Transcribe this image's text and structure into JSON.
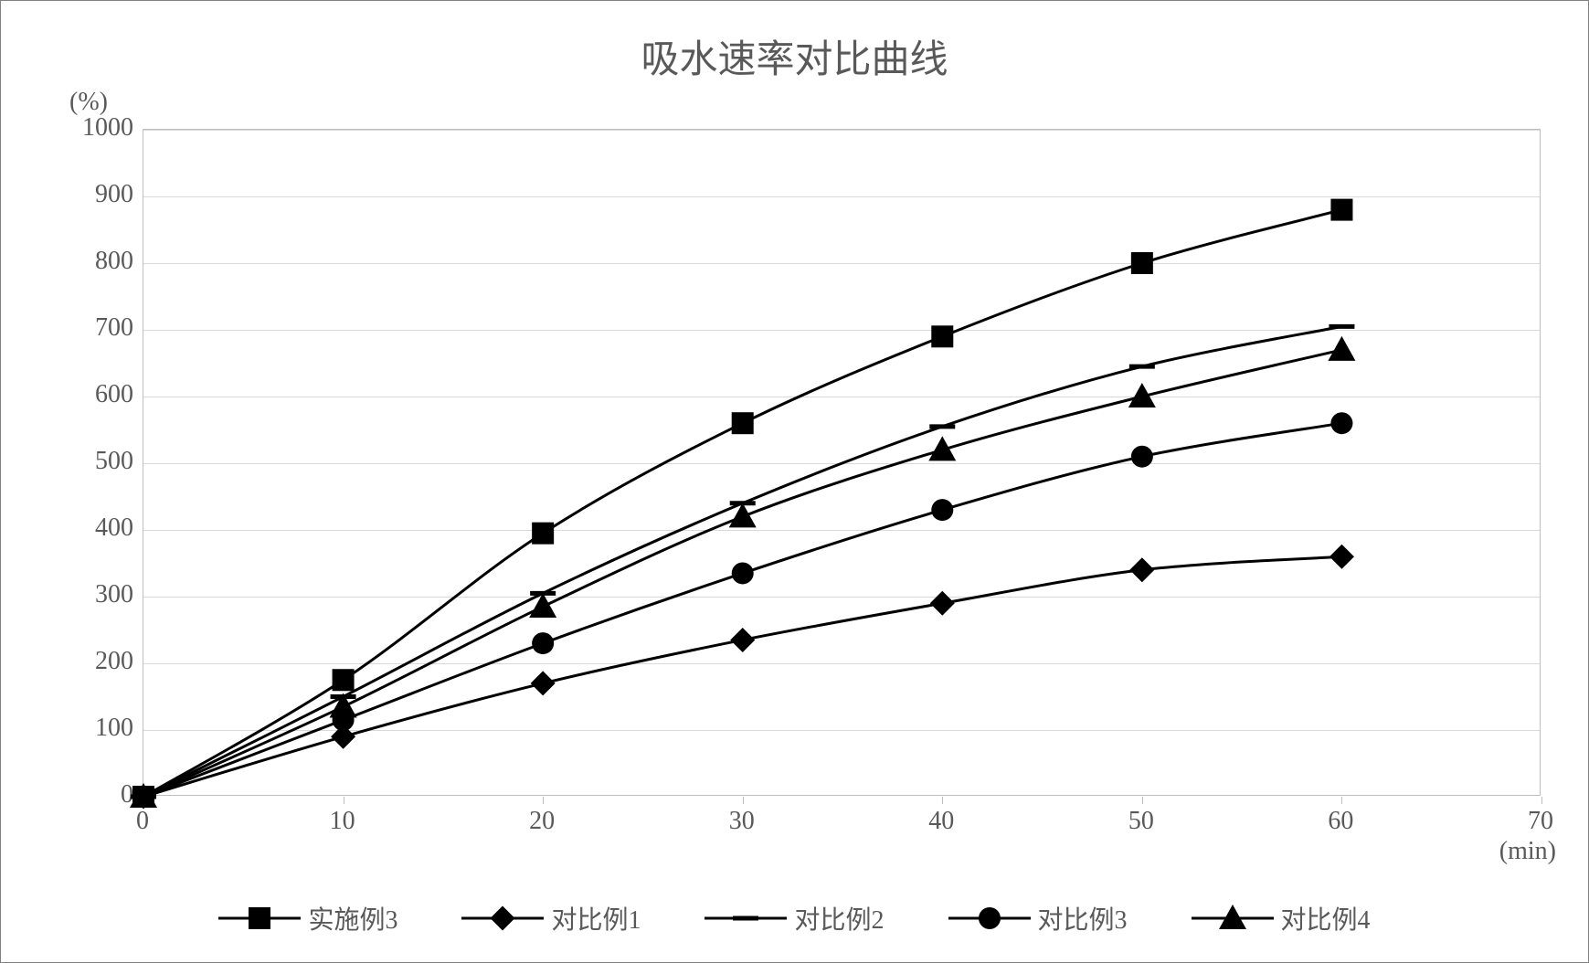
{
  "chart": {
    "type": "line",
    "title": "吸水速率对比曲线",
    "title_fontsize": 42,
    "title_color": "#595959",
    "y_unit_label": "(%)",
    "x_unit_label": "(min)",
    "label_fontsize": 28,
    "label_color": "#595959",
    "background_color": "#ffffff",
    "border_color": "#808080",
    "plot_border_color": "#bfbfbf",
    "grid_color": "#d9d9d9",
    "series_color": "#000000",
    "line_width": 3,
    "marker_size": 10,
    "xlim": [
      0,
      70
    ],
    "ylim": [
      0,
      1000
    ],
    "xticks": [
      0,
      10,
      20,
      30,
      40,
      50,
      60,
      70
    ],
    "yticks": [
      0,
      100,
      200,
      300,
      400,
      500,
      600,
      700,
      800,
      900,
      1000
    ],
    "x_values": [
      0,
      10,
      20,
      30,
      40,
      50,
      60
    ],
    "series": [
      {
        "label": "实施例3",
        "marker": "square",
        "values": [
          0,
          175,
          395,
          560,
          690,
          800,
          880
        ]
      },
      {
        "label": "对比例1",
        "marker": "diamond",
        "values": [
          0,
          90,
          170,
          235,
          290,
          340,
          360
        ]
      },
      {
        "label": "对比例2",
        "marker": "dash",
        "values": [
          0,
          150,
          305,
          440,
          555,
          645,
          705
        ]
      },
      {
        "label": "对比例3",
        "marker": "circle",
        "values": [
          0,
          115,
          230,
          335,
          430,
          510,
          560
        ]
      },
      {
        "label": "对比例4",
        "marker": "triangle",
        "values": [
          0,
          135,
          285,
          420,
          520,
          600,
          670
        ]
      }
    ]
  }
}
